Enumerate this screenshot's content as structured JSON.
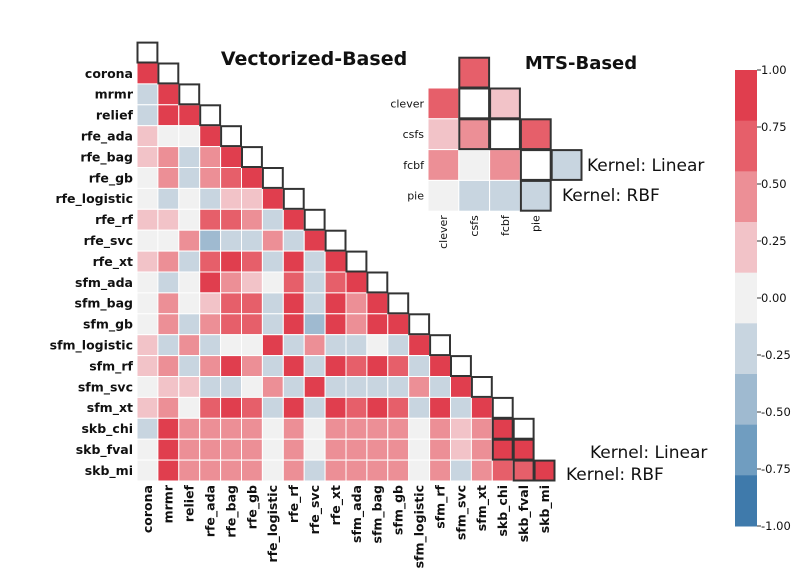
{
  "chart_data": [
    {
      "type": "heatmap",
      "title": "Vectorized-Based",
      "shape": "lower-triangle",
      "labels": [
        "corona",
        "mrmr",
        "relief",
        "rfe_ada",
        "rfe_bag",
        "rfe_gb",
        "rfe_logistic",
        "rfe_rf",
        "rfe_svc",
        "rfe_xt",
        "sfm_ada",
        "sfm_bag",
        "sfm_gb",
        "sfm_logistic",
        "sfm_rf",
        "sfm_svc",
        "sfm_xt",
        "skb_chi",
        "skb_fval",
        "skb_mi"
      ],
      "values": [
        [
          1.0
        ],
        [
          -0.15,
          1.0
        ],
        [
          -0.15,
          0.85,
          1.0
        ],
        [
          0.25,
          0.0,
          0.0,
          1.0
        ],
        [
          0.25,
          0.5,
          -0.15,
          0.4,
          1.0
        ],
        [
          0.1,
          0.4,
          -0.15,
          0.5,
          0.6,
          1.0
        ],
        [
          0.1,
          -0.15,
          0.0,
          -0.15,
          0.2,
          0.25,
          1.0
        ],
        [
          0.25,
          0.25,
          0.1,
          0.7,
          0.75,
          0.5,
          -0.15,
          1.0
        ],
        [
          0.0,
          0.0,
          0.4,
          -0.45,
          -0.2,
          -0.15,
          0.4,
          -0.2,
          1.0
        ],
        [
          0.25,
          0.4,
          -0.15,
          0.7,
          0.85,
          0.7,
          -0.2,
          0.85,
          -0.15,
          1.0
        ],
        [
          0.1,
          -0.15,
          0.0,
          0.8,
          0.4,
          0.3,
          0.0,
          0.6,
          -0.25,
          0.6,
          1.0
        ],
        [
          0.1,
          0.5,
          0.0,
          0.25,
          0.75,
          0.6,
          -0.15,
          0.85,
          -0.2,
          0.8,
          0.4,
          1.0
        ],
        [
          0.1,
          0.5,
          -0.15,
          0.4,
          0.7,
          0.65,
          -0.2,
          0.8,
          -0.4,
          0.85,
          0.4,
          0.8,
          1.0
        ],
        [
          0.25,
          -0.15,
          0.4,
          -0.15,
          0.1,
          0.1,
          0.85,
          -0.15,
          0.4,
          -0.15,
          -0.15,
          0.0,
          -0.15,
          1.0
        ],
        [
          0.2,
          0.5,
          -0.15,
          0.55,
          0.8,
          0.5,
          -0.15,
          0.85,
          -0.2,
          0.8,
          0.6,
          0.85,
          0.7,
          -0.15,
          1.0
        ],
        [
          0.1,
          0.2,
          0.25,
          -0.15,
          -0.15,
          0.1,
          0.4,
          -0.15,
          0.9,
          -0.15,
          -0.15,
          -0.15,
          -0.15,
          0.5,
          -0.15,
          1.0
        ],
        [
          0.2,
          0.5,
          0.0,
          0.6,
          0.85,
          0.7,
          -0.15,
          0.85,
          -0.15,
          0.85,
          0.7,
          0.8,
          0.75,
          -0.15,
          0.8,
          -0.15,
          1.0
        ],
        [
          -0.15,
          0.85,
          0.5,
          0.4,
          0.5,
          0.4,
          0.0,
          0.5,
          0.0,
          0.5,
          0.4,
          0.5,
          0.5,
          0.0,
          0.55,
          0.25,
          0.5,
          1.0
        ],
        [
          0.0,
          0.85,
          0.55,
          0.4,
          0.5,
          0.4,
          0.1,
          0.5,
          0.0,
          0.5,
          0.4,
          0.5,
          0.5,
          0.0,
          0.5,
          0.25,
          0.5,
          0.9,
          1.0
        ],
        [
          0.0,
          0.85,
          0.5,
          0.4,
          0.5,
          0.4,
          0.1,
          0.5,
          -0.15,
          0.5,
          0.4,
          0.5,
          0.5,
          0.0,
          0.5,
          -0.15,
          0.5,
          0.7,
          0.75,
          1.0
        ]
      ]
    },
    {
      "type": "heatmap",
      "title": "MTS-Based",
      "shape": "lower-triangle",
      "labels": [
        "clever",
        "csfs",
        "fcbf",
        "pie"
      ],
      "values": [
        [
          0.7
        ],
        [
          0.3,
          0.5
        ],
        [
          0.5,
          0.0,
          0.5,
          0.7
        ],
        [
          0.0,
          -0.2,
          -0.2,
          -0.2
        ]
      ]
    }
  ],
  "annotations": {
    "vec_linear": "Kernel: Linear",
    "vec_rbf": "Kernel: RBF",
    "mts_linear": "Kernel: Linear",
    "mts_rbf": "Kernel: RBF"
  },
  "colorbar": {
    "min": -1.0,
    "max": 1.0,
    "ticks": [
      "1.00",
      "0.75",
      "0.50",
      "0.25",
      "0.00",
      "-0.25",
      "-0.50",
      "-0.75",
      "-1.00"
    ],
    "colors_top_to_bottom": [
      "#e03e4e",
      "#e65f6a",
      "#ec8f96",
      "#f2c3c8",
      "#f1f1f1",
      "#c8d5e0",
      "#9fbad0",
      "#709dc0",
      "#3f7aab"
    ]
  }
}
